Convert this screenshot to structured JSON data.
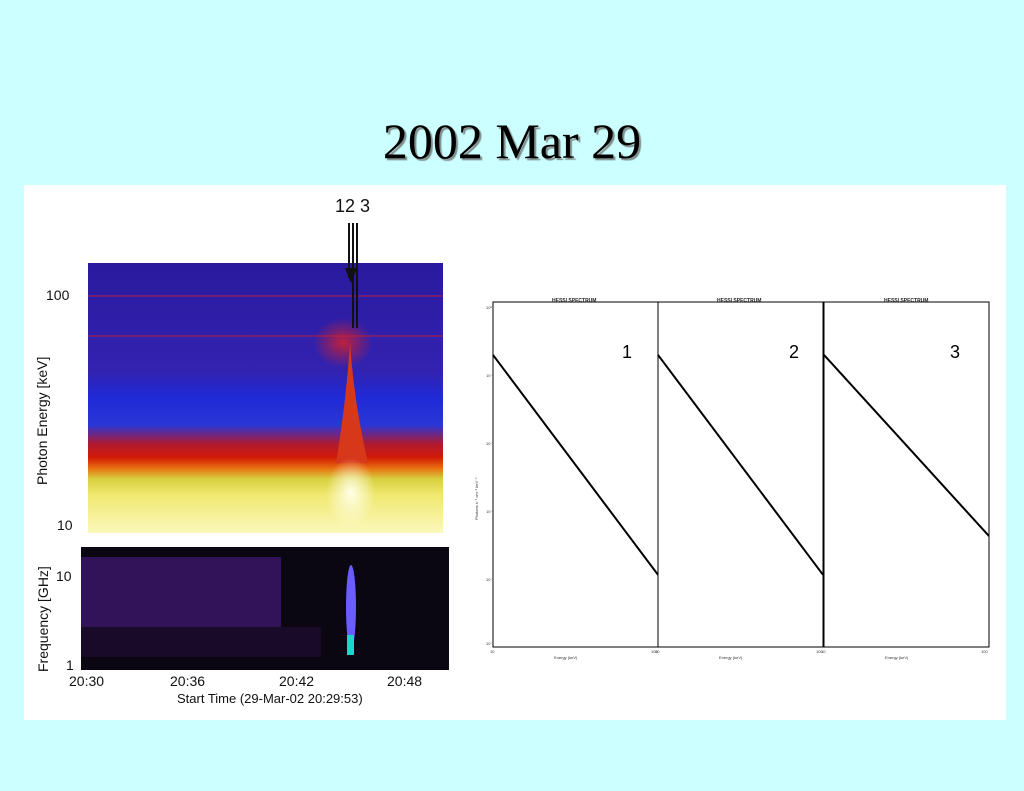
{
  "slide": {
    "title": "2002 Mar 29"
  },
  "chart_data": [
    {
      "type": "heatmap",
      "name": "hard-x-ray-spectrogram",
      "ylabel": "Photon Energy [keV]",
      "y_scale": "log",
      "ylim": [
        8,
        140
      ],
      "xlim": [
        "20:30",
        "20:50"
      ],
      "y_ticks": [
        "100",
        "10"
      ],
      "colormap": [
        "#2a1a9e",
        "#1f2ad8",
        "#d21a06",
        "#f0e040",
        "#fbf9bc"
      ],
      "annotations": {
        "arrow_label_left": "12",
        "arrow_label_right": "3"
      }
    },
    {
      "type": "heatmap",
      "name": "radio-spectrogram",
      "ylabel": "Frequency [GHz]",
      "y_scale": "log",
      "ylim": [
        1,
        20
      ],
      "y_ticks": [
        "10",
        "1"
      ],
      "x_ticks": [
        "20:30",
        "20:36",
        "20:42",
        "20:48"
      ],
      "xlabel": "Start Time (29-Mar-02 20:29:53)"
    },
    {
      "type": "scatter",
      "name": "spectra",
      "panels": [
        {
          "label": "1",
          "title": "HESSI SPECTRUM",
          "xlabel": "Energy (keV)",
          "x_scale": "log",
          "y_scale": "log",
          "xlim": [
            10,
            100
          ],
          "ylim": [
            1e-05,
            10
          ],
          "fit_line": {
            "x": [
              10,
              100
            ],
            "y": [
              1.2,
              0.00018
            ]
          }
        },
        {
          "label": "2",
          "title": "HESSI SPECTRUM",
          "xlabel": "Energy (keV)",
          "x_scale": "log",
          "y_scale": "log",
          "xlim": [
            10,
            100
          ],
          "ylim": [
            1e-05,
            10
          ],
          "fit_line": {
            "x": [
              10,
              100
            ],
            "y": [
              1.2,
              0.00018
            ]
          }
        },
        {
          "label": "3",
          "title": "HESSI SPECTRUM",
          "xlabel": "Energy (keV)",
          "x_scale": "log",
          "y_scale": "log",
          "xlim": [
            10,
            100
          ],
          "ylim": [
            1e-05,
            10
          ],
          "fit_line": {
            "x": [
              10,
              100
            ],
            "y": [
              1.2,
              0.00085
            ]
          }
        }
      ],
      "ylabel": "Photons s⁻¹ cm⁻² keV⁻¹",
      "x_tick_min": "10",
      "x_tick_max": "100",
      "y_ticks": [
        "10⁰",
        "10⁻²",
        "10⁻⁴",
        "10⁻⁶",
        "10⁻⁸",
        "10⁻¹⁰"
      ]
    }
  ]
}
